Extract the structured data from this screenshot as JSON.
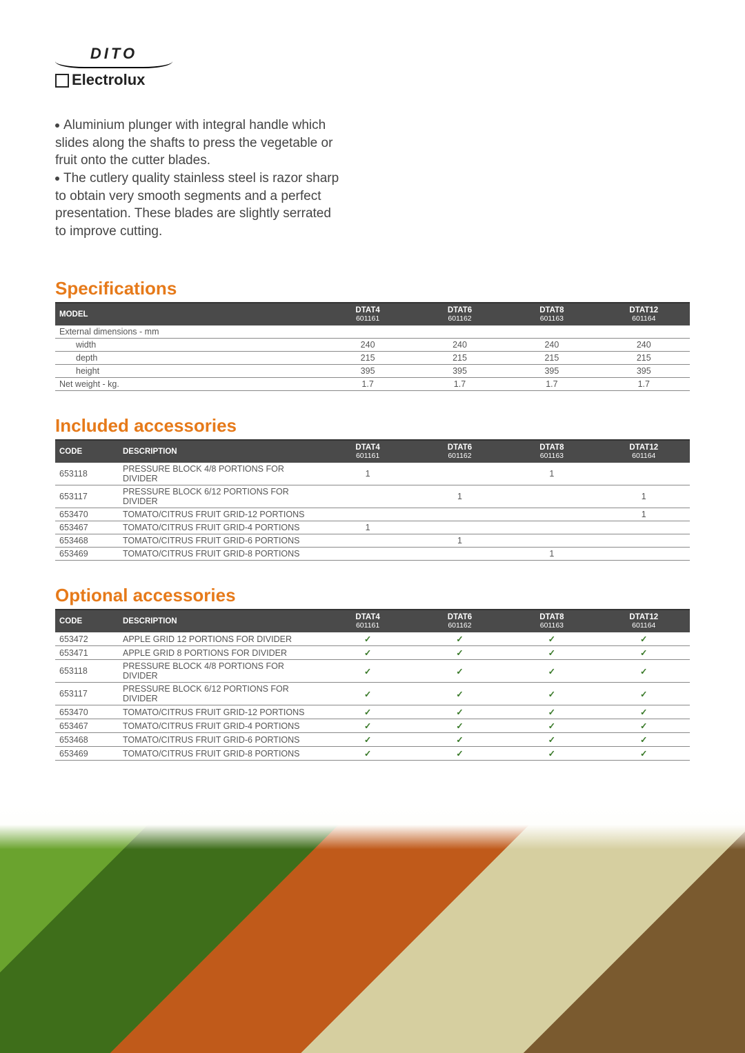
{
  "logo": {
    "line1": "DITO",
    "line2": "Electrolux"
  },
  "description": {
    "p1": "Aluminium plunger with integral handle which slides along the shafts to press the vegetable or fruit onto the cutter blades.",
    "p2": "The cutlery quality stainless steel is razor sharp to obtain very smooth segments and a perfect presentation. These blades are slightly serrated to improve cutting."
  },
  "columns": [
    {
      "name": "DTAT4",
      "code": "601161"
    },
    {
      "name": "DTAT6",
      "code": "601162"
    },
    {
      "name": "DTAT8",
      "code": "601163"
    },
    {
      "name": "DTAT12",
      "code": "601164"
    }
  ],
  "specs": {
    "title": "Specifications",
    "model_label": "MODEL",
    "grouprow": "External dimensions - mm",
    "rows": [
      {
        "label": "width",
        "v": [
          "240",
          "240",
          "240",
          "240"
        ],
        "indent": true
      },
      {
        "label": "depth",
        "v": [
          "215",
          "215",
          "215",
          "215"
        ],
        "indent": true
      },
      {
        "label": "height",
        "v": [
          "395",
          "395",
          "395",
          "395"
        ],
        "indent": true
      },
      {
        "label": "Net weight - kg.",
        "v": [
          "1.7",
          "1.7",
          "1.7",
          "1.7"
        ],
        "indent": false
      }
    ]
  },
  "included": {
    "title": "Included accessories",
    "code_label": "CODE",
    "desc_label": "DESCRIPTION",
    "rows": [
      {
        "code": "653118",
        "desc": "PRESSURE BLOCK 4/8 PORTIONS FOR DIVIDER",
        "v": [
          "1",
          "",
          "1",
          ""
        ]
      },
      {
        "code": "653117",
        "desc": "PRESSURE BLOCK 6/12 PORTIONS FOR DIVIDER",
        "v": [
          "",
          "1",
          "",
          "1"
        ]
      },
      {
        "code": "653470",
        "desc": "TOMATO/CITRUS FRUIT GRID-12 PORTIONS",
        "v": [
          "",
          "",
          "",
          "1"
        ]
      },
      {
        "code": "653467",
        "desc": "TOMATO/CITRUS FRUIT GRID-4 PORTIONS",
        "v": [
          "1",
          "",
          "",
          ""
        ]
      },
      {
        "code": "653468",
        "desc": "TOMATO/CITRUS FRUIT GRID-6 PORTIONS",
        "v": [
          "",
          "1",
          "",
          ""
        ]
      },
      {
        "code": "653469",
        "desc": "TOMATO/CITRUS FRUIT GRID-8 PORTIONS",
        "v": [
          "",
          "",
          "1",
          ""
        ]
      }
    ]
  },
  "optional": {
    "title": "Optional accessories",
    "code_label": "CODE",
    "desc_label": "DESCRIPTION",
    "check": "✓",
    "rows": [
      {
        "code": "653472",
        "desc": "APPLE GRID 12 PORTIONS FOR DIVIDER",
        "v": [
          true,
          true,
          true,
          true
        ]
      },
      {
        "code": "653471",
        "desc": "APPLE GRID 8 PORTIONS FOR DIVIDER",
        "v": [
          true,
          true,
          true,
          true
        ]
      },
      {
        "code": "653118",
        "desc": "PRESSURE BLOCK 4/8 PORTIONS FOR DIVIDER",
        "v": [
          true,
          true,
          true,
          true
        ]
      },
      {
        "code": "653117",
        "desc": "PRESSURE BLOCK 6/12 PORTIONS FOR DIVIDER",
        "v": [
          true,
          true,
          true,
          true
        ]
      },
      {
        "code": "653470",
        "desc": "TOMATO/CITRUS FRUIT GRID-12 PORTIONS",
        "v": [
          true,
          true,
          true,
          true
        ]
      },
      {
        "code": "653467",
        "desc": "TOMATO/CITRUS FRUIT GRID-4 PORTIONS",
        "v": [
          true,
          true,
          true,
          true
        ]
      },
      {
        "code": "653468",
        "desc": "TOMATO/CITRUS FRUIT GRID-6 PORTIONS",
        "v": [
          true,
          true,
          true,
          true
        ]
      },
      {
        "code": "653469",
        "desc": "TOMATO/CITRUS FRUIT GRID-8 PORTIONS",
        "v": [
          true,
          true,
          true,
          true
        ]
      }
    ]
  },
  "styling": {
    "accent_color": "#e67a1a",
    "header_bg": "#4a4a4a",
    "border_color": "#888888",
    "check_color": "#3a7a2a",
    "body_font_size": 19,
    "table_font_size": 12.5,
    "title_font_size": 26
  }
}
